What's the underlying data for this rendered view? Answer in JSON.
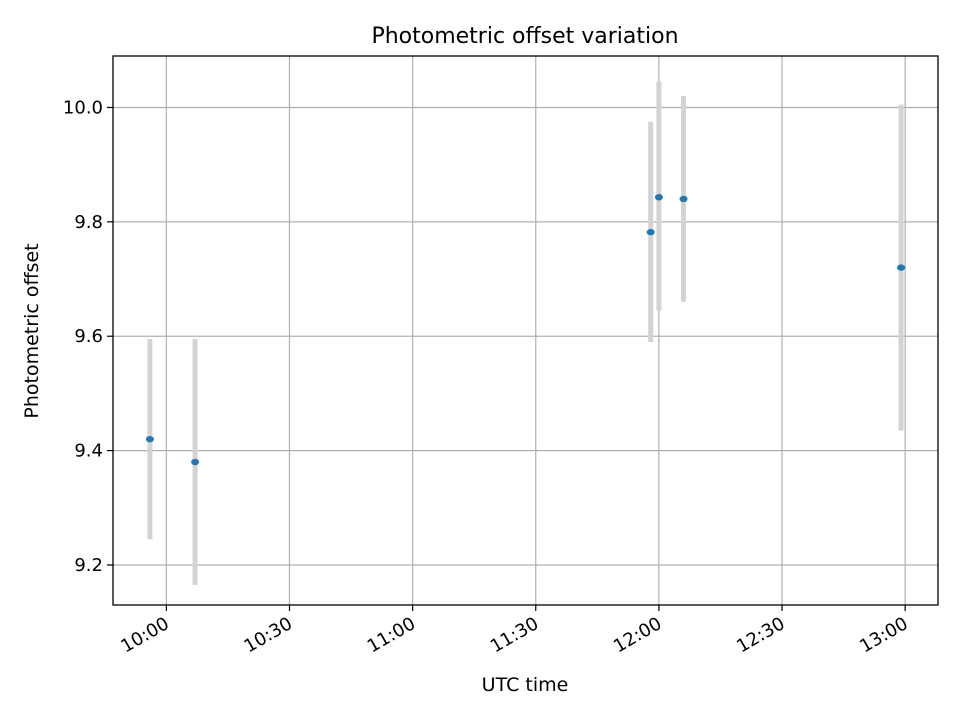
{
  "chart_data": {
    "type": "scatter",
    "title": "Photometric offset variation",
    "xlabel": "UTC time",
    "ylabel": "Photometric offset",
    "x_ticks": [
      "10:00",
      "10:30",
      "11:00",
      "11:30",
      "12:00",
      "12:30",
      "13:00"
    ],
    "y_ticks": [
      "9.2",
      "9.4",
      "9.6",
      "9.8",
      "10.0"
    ],
    "xlim": [
      "09:47",
      "13:08"
    ],
    "ylim": [
      9.13,
      10.09
    ],
    "grid": true,
    "colors": {
      "point": "#1f77b4",
      "error_bar": "#d3d3d3"
    },
    "series": [
      {
        "points": [
          {
            "x": "09:56",
            "y": 9.42,
            "yerr_low": 9.245,
            "yerr_high": 9.595
          },
          {
            "x": "10:07",
            "y": 9.38,
            "yerr_low": 9.165,
            "yerr_high": 9.595
          },
          {
            "x": "11:58",
            "y": 9.782,
            "yerr_low": 9.59,
            "yerr_high": 9.975
          },
          {
            "x": "12:00",
            "y": 9.843,
            "yerr_low": 9.645,
            "yerr_high": 10.045
          },
          {
            "x": "12:06",
            "y": 9.84,
            "yerr_low": 9.66,
            "yerr_high": 10.02
          },
          {
            "x": "12:59",
            "y": 9.72,
            "yerr_low": 9.435,
            "yerr_high": 10.005
          }
        ]
      }
    ]
  }
}
